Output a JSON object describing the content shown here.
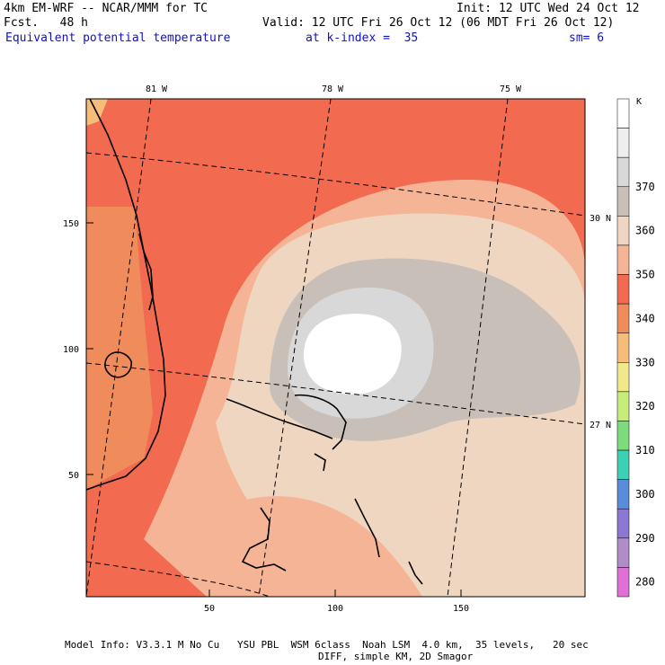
{
  "header": {
    "model_line": "4km EM-WRF -- NCAR/MMM for TC",
    "fcst_line": "Fcst.   48 h",
    "init_line": "Init: 12 UTC Wed 24 Oct 12",
    "valid_line": "Valid: 12 UTC Fri 26 Oct 12 (06 MDT Fri 26 Oct 12)",
    "field_name": "Equivalent potential temperature",
    "k_index": "at k-index =  35",
    "sm": "sm= 6"
  },
  "axes": {
    "top_lon_labels": [
      "81 W",
      "78 W",
      "75 W"
    ],
    "right_lat_labels": [
      "30 N",
      "27 N"
    ],
    "left_grid_labels": [
      "150",
      "100",
      "50"
    ],
    "bottom_grid_labels": [
      "50",
      "100",
      "150"
    ]
  },
  "colorbar": {
    "unit": "K",
    "levels": [
      "370",
      "360",
      "350",
      "340",
      "330",
      "320",
      "310",
      "300",
      "290",
      "280"
    ],
    "colors": [
      "#ffffff",
      "#eeeeee",
      "#d8d8d8",
      "#c8c0b8",
      "#efd6c0",
      "#f5b496",
      "#f26a50",
      "#f08c5c",
      "#f5bc7a",
      "#f0e88a",
      "#c8ec7a",
      "#7cdc7c",
      "#3cd0b4",
      "#5a8cdc",
      "#8c78d4",
      "#b08cc8",
      "#e070d8"
    ]
  },
  "map": {
    "colors": {
      "background": "#f26a50",
      "warm_inner": "#f08c5c",
      "peach": "#f5b496",
      "tan": "#efd6c0",
      "gray": "#c8c0b8",
      "light_gray": "#d8d8d8",
      "white": "#ffffff",
      "land": "#f08c5c"
    }
  },
  "footer": {
    "line1": "Model Info: V3.3.1 M No Cu   YSU PBL  WSM 6class  Noah LSM  4.0 km,  35 levels,   20 sec",
    "line2": "DIFF, simple KM, 2D Smagor"
  }
}
